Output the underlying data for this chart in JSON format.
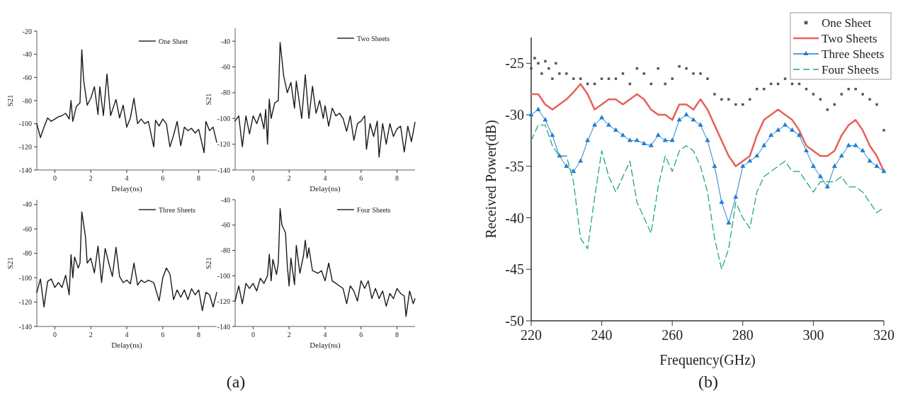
{
  "chart_data": [
    {
      "type": "line",
      "xlabel": "Delay(ns)",
      "ylabel": "S21",
      "xlim": [
        -1,
        9
      ],
      "xticks": [
        0,
        2,
        4,
        6,
        8
      ],
      "ylim": [
        -140,
        -20
      ],
      "yticks": [
        -140,
        -120,
        -100,
        -80,
        -60,
        -40,
        -20
      ],
      "legend": "top right",
      "annotations": [
        "(a)"
      ],
      "series": [
        {
          "name": "One Sheet",
          "color": "#1a1a1a",
          "x": [
            -1,
            -0.8,
            -0.6,
            -0.4,
            -0.2,
            0,
            0.2,
            0.4,
            0.6,
            0.8,
            0.9,
            1,
            1.2,
            1.4,
            1.5,
            1.6,
            1.8,
            2,
            2.2,
            2.4,
            2.5,
            2.7,
            2.9,
            3.1,
            3.4,
            3.6,
            3.8,
            4,
            4.2,
            4.4,
            4.6,
            4.8,
            5,
            5.2,
            5.5,
            5.6,
            5.8,
            6,
            6.2,
            6.4,
            6.6,
            6.8,
            7,
            7.2,
            7.4,
            7.6,
            7.8,
            8,
            8.3,
            8.4,
            8.6,
            8.8,
            9
          ],
          "values": [
            -100,
            -112,
            -103,
            -95,
            -98,
            -96,
            -94,
            -93,
            -91,
            -96,
            -80,
            -98,
            -85,
            -82,
            -36,
            -62,
            -84,
            -78,
            -68,
            -92,
            -68,
            -93,
            -57,
            -93,
            -79,
            -95,
            -84,
            -103,
            -95,
            -78,
            -100,
            -96,
            -100,
            -98,
            -120,
            -97,
            -102,
            -96,
            -100,
            -120,
            -110,
            -98,
            -119,
            -103,
            -106,
            -104,
            -108,
            -105,
            -125,
            -98,
            -106,
            -103,
            -116
          ]
        }
      ]
    },
    {
      "type": "line",
      "xlabel": "Delay(ns)",
      "ylabel": "S21",
      "xlim": [
        -1,
        9
      ],
      "xticks": [
        0,
        2,
        4,
        6,
        8
      ],
      "ylim": [
        -140,
        -30
      ],
      "yticks": [
        -140,
        -120,
        -100,
        -80,
        -60,
        -40
      ],
      "legend": "top right",
      "series": [
        {
          "name": "Two Sheets",
          "color": "#1a1a1a",
          "x": [
            -1,
            -0.8,
            -0.6,
            -0.4,
            -0.2,
            0,
            0.2,
            0.4,
            0.6,
            0.7,
            0.8,
            0.9,
            1,
            1.2,
            1.4,
            1.5,
            1.7,
            1.9,
            2.1,
            2.3,
            2.4,
            2.7,
            2.9,
            3.1,
            3.3,
            3.5,
            3.7,
            3.9,
            4,
            4.2,
            4.4,
            4.6,
            4.8,
            5,
            5.2,
            5.4,
            5.6,
            5.8,
            6,
            6.2,
            6.3,
            6.5,
            6.7,
            6.9,
            7,
            7.2,
            7.4,
            7.6,
            7.8,
            8,
            8.2,
            8.4,
            8.6,
            8.8,
            9
          ],
          "values": [
            -102,
            -98,
            -122,
            -98,
            -112,
            -98,
            -104,
            -96,
            -108,
            -93,
            -120,
            -85,
            -100,
            -88,
            -86,
            -41,
            -67,
            -80,
            -72,
            -92,
            -71,
            -100,
            -66,
            -100,
            -75,
            -96,
            -86,
            -100,
            -90,
            -106,
            -92,
            -98,
            -96,
            -100,
            -110,
            -98,
            -117,
            -104,
            -102,
            -98,
            -124,
            -104,
            -114,
            -102,
            -130,
            -104,
            -120,
            -104,
            -114,
            -108,
            -106,
            -126,
            -106,
            -118,
            -103
          ]
        }
      ]
    },
    {
      "type": "line",
      "xlabel": "Delay(ns)",
      "ylabel": "S21",
      "xlim": [
        -1,
        9
      ],
      "xticks": [
        0,
        2,
        4,
        6,
        8
      ],
      "ylim": [
        -140,
        -36
      ],
      "yticks": [
        -140,
        -120,
        -100,
        -80,
        -60,
        -40
      ],
      "legend": "top right",
      "series": [
        {
          "name": "Three Sheets",
          "color": "#1a1a1a",
          "x": [
            -1,
            -0.8,
            -0.6,
            -0.4,
            -0.2,
            0,
            0.2,
            0.4,
            0.6,
            0.8,
            0.9,
            1,
            1.1,
            1.3,
            1.4,
            1.5,
            1.7,
            1.8,
            2,
            2.2,
            2.4,
            2.6,
            2.8,
            3,
            3.2,
            3.4,
            3.6,
            3.8,
            4,
            4.2,
            4.4,
            4.6,
            4.8,
            5,
            5.2,
            5.5,
            5.8,
            6,
            6.2,
            6.4,
            6.6,
            6.8,
            7,
            7.2,
            7.4,
            7.6,
            7.8,
            8,
            8.2,
            8.4,
            8.6,
            8.8,
            9
          ],
          "values": [
            -112,
            -101,
            -124,
            -103,
            -101,
            -108,
            -104,
            -108,
            -98,
            -114,
            -81,
            -100,
            -83,
            -92,
            -88,
            -46,
            -66,
            -88,
            -84,
            -96,
            -74,
            -104,
            -76,
            -88,
            -99,
            -75,
            -99,
            -104,
            -102,
            -105,
            -88,
            -106,
            -102,
            -104,
            -102,
            -104,
            -119,
            -100,
            -92,
            -97,
            -118,
            -110,
            -116,
            -110,
            -118,
            -109,
            -114,
            -110,
            -127,
            -112,
            -114,
            -124,
            -112
          ]
        }
      ]
    },
    {
      "type": "line",
      "xlabel": "Delay(ns)",
      "ylabel": "S21",
      "xlim": [
        -1,
        9
      ],
      "xticks": [
        0,
        2,
        4,
        6,
        8
      ],
      "ylim": [
        -140,
        -40
      ],
      "yticks": [
        -140,
        -120,
        -100,
        -80,
        -60,
        -40
      ],
      "legend": "top right",
      "series": [
        {
          "name": "Four Sheets",
          "color": "#1a1a1a",
          "x": [
            -1,
            -0.8,
            -0.6,
            -0.4,
            -0.2,
            0,
            0.2,
            0.4,
            0.6,
            0.8,
            0.9,
            1,
            1.1,
            1.3,
            1.4,
            1.5,
            1.6,
            1.8,
            1.9,
            2,
            2.1,
            2.3,
            2.4,
            2.6,
            2.8,
            2.9,
            3,
            3.1,
            3.3,
            3.6,
            3.8,
            4,
            4.2,
            4.4,
            4.6,
            4.8,
            5,
            5.2,
            5.4,
            5.6,
            5.8,
            6,
            6.2,
            6.4,
            6.6,
            6.8,
            7,
            7.2,
            7.4,
            7.6,
            7.8,
            8,
            8.2,
            8.4,
            8.5,
            8.7,
            8.9,
            9
          ],
          "values": [
            -120,
            -108,
            -122,
            -106,
            -110,
            -106,
            -112,
            -102,
            -106,
            -100,
            -83,
            -104,
            -87,
            -99,
            -90,
            -47,
            -60,
            -66,
            -92,
            -108,
            -86,
            -107,
            -76,
            -98,
            -84,
            -72,
            -86,
            -78,
            -96,
            -98,
            -96,
            -104,
            -90,
            -104,
            -106,
            -108,
            -110,
            -122,
            -108,
            -112,
            -120,
            -104,
            -110,
            -104,
            -118,
            -110,
            -118,
            -112,
            -124,
            -114,
            -118,
            -110,
            -114,
            -116,
            -132,
            -112,
            -122,
            -118
          ]
        }
      ]
    },
    {
      "type": "line",
      "xlabel": "Frequency(GHz)",
      "ylabel": "Received Power(dB)",
      "xlim": [
        220,
        320
      ],
      "xticks": [
        220,
        240,
        260,
        280,
        300,
        320
      ],
      "ylim": [
        -50,
        -22.5
      ],
      "yticks": [
        -50,
        -45,
        -40,
        -35,
        -30,
        -25
      ],
      "legend": "top right",
      "annotations": [
        "(b)"
      ],
      "series": [
        {
          "name": "One Sheet",
          "type": "scatter",
          "marker": "square",
          "color": "#555555",
          "x": [
            220,
            221,
            222,
            223,
            224,
            225,
            226,
            227,
            228,
            230,
            232,
            234,
            236,
            238,
            240,
            242,
            244,
            246,
            248,
            250,
            252,
            254,
            256,
            258,
            260,
            262,
            264,
            266,
            268,
            270,
            272,
            274,
            276,
            278,
            280,
            282,
            284,
            286,
            288,
            290,
            292,
            294,
            296,
            298,
            300,
            302,
            304,
            306,
            308,
            310,
            312,
            314,
            316,
            318,
            320
          ],
          "values": [
            -25.5,
            -24.5,
            -25,
            -26,
            -24.8,
            -25.5,
            -26.5,
            -25,
            -26,
            -26,
            -26.5,
            -26.5,
            -27,
            -27,
            -26.5,
            -26.5,
            -26.5,
            -26,
            -27,
            -25.5,
            -26,
            -27,
            -25.5,
            -27,
            -26.5,
            -25.3,
            -25.5,
            -26,
            -26,
            -26.5,
            -28,
            -28.5,
            -28.5,
            -29,
            -29,
            -28.5,
            -27.5,
            -27.5,
            -27,
            -27,
            -26.5,
            -27,
            -27,
            -27.5,
            -28,
            -28.5,
            -29.5,
            -29,
            -28,
            -27.5,
            -27.5,
            -28,
            -28.5,
            -29,
            -31.5
          ]
        },
        {
          "name": "Two Sheets",
          "type": "line",
          "line_style": "solid",
          "color": "#e8605a",
          "x": [
            220,
            222,
            224,
            226,
            228,
            230,
            232,
            234,
            236,
            238,
            240,
            242,
            244,
            246,
            248,
            250,
            252,
            254,
            256,
            258,
            260,
            262,
            264,
            266,
            268,
            270,
            272,
            274,
            276,
            278,
            280,
            282,
            284,
            286,
            288,
            290,
            292,
            294,
            296,
            298,
            300,
            302,
            304,
            306,
            308,
            310,
            312,
            314,
            316,
            318,
            320
          ],
          "values": [
            -28,
            -28,
            -29,
            -29.5,
            -29,
            -28.5,
            -27.8,
            -27,
            -28,
            -29.5,
            -29,
            -28.5,
            -28.5,
            -29,
            -28.5,
            -28,
            -28.5,
            -29.5,
            -30,
            -30,
            -30.5,
            -29,
            -29,
            -29.5,
            -28.5,
            -29.5,
            -31,
            -32.5,
            -34,
            -35,
            -34.5,
            -34,
            -32,
            -30.5,
            -30,
            -29.5,
            -30,
            -30.5,
            -31.5,
            -33,
            -33.5,
            -34,
            -34,
            -33.5,
            -32,
            -31,
            -30.5,
            -31.5,
            -33,
            -34,
            -35.5
          ]
        },
        {
          "name": "Three Sheets",
          "type": "line",
          "marker": "triangle",
          "line_style": "solid",
          "color": "#1f7fd0",
          "x": [
            220,
            222,
            224,
            226,
            228,
            230,
            232,
            234,
            236,
            238,
            240,
            242,
            244,
            246,
            248,
            250,
            252,
            254,
            256,
            258,
            260,
            262,
            264,
            266,
            268,
            270,
            272,
            274,
            276,
            278,
            280,
            282,
            284,
            286,
            288,
            290,
            292,
            294,
            296,
            298,
            300,
            302,
            304,
            306,
            308,
            310,
            312,
            314,
            316,
            318,
            320
          ],
          "values": [
            -30,
            -29.5,
            -30.5,
            -32,
            -34,
            -35,
            -35.5,
            -34.5,
            -32.5,
            -31,
            -30.3,
            -31,
            -31.5,
            -32,
            -32.5,
            -32.5,
            -32.8,
            -33,
            -32,
            -32.5,
            -32.5,
            -30.5,
            -30,
            -30.5,
            -31,
            -32.5,
            -35,
            -38.5,
            -40.5,
            -38,
            -35,
            -34.5,
            -34,
            -33,
            -32,
            -31.5,
            -31,
            -31.5,
            -32,
            -33.5,
            -35,
            -36,
            -37,
            -35,
            -34,
            -33,
            -33,
            -33.5,
            -34.5,
            -35,
            -35.5
          ]
        },
        {
          "name": "Four Sheets",
          "type": "line",
          "line_style": "dashed",
          "color": "#20a878",
          "x": [
            220,
            222,
            224,
            226,
            228,
            230,
            232,
            234,
            236,
            238,
            240,
            242,
            244,
            246,
            248,
            250,
            252,
            254,
            256,
            258,
            260,
            262,
            264,
            266,
            268,
            270,
            272,
            274,
            276,
            278,
            280,
            282,
            284,
            286,
            288,
            290,
            292,
            294,
            296,
            298,
            300,
            302,
            304,
            306,
            308,
            310,
            312,
            314,
            316,
            318,
            320
          ],
          "values": [
            -32.5,
            -31,
            -31,
            -33,
            -34,
            -34,
            -36.5,
            -42,
            -43,
            -38,
            -33.5,
            -36,
            -37.5,
            -36,
            -34.5,
            -38.5,
            -40,
            -41.5,
            -37,
            -34,
            -35.5,
            -33.5,
            -33,
            -33.5,
            -35,
            -37.5,
            -42,
            -45,
            -43,
            -38.5,
            -40,
            -41,
            -37.5,
            -36,
            -35.5,
            -35,
            -34.5,
            -35.5,
            -35.5,
            -36.5,
            -37.5,
            -36.5,
            -36.5,
            -36.5,
            -36,
            -37,
            -37,
            -37.5,
            -38.5,
            -39.5,
            -39
          ]
        }
      ]
    }
  ]
}
